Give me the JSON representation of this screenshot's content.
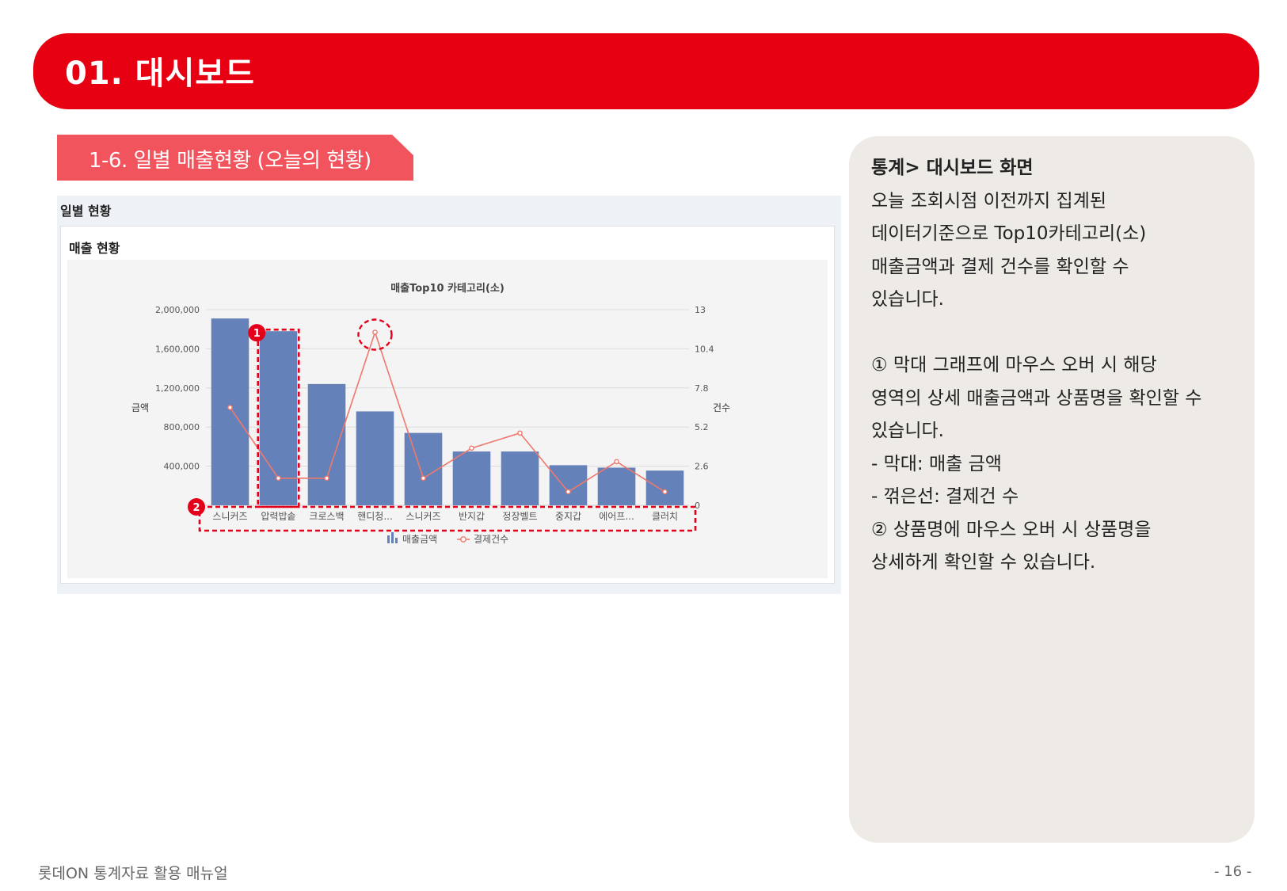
{
  "header": {
    "title": "01. 대시보드"
  },
  "section": {
    "label": "1-6. 일별 매출현황 (오늘의 현황)"
  },
  "panel": {
    "outer_title": "일별 현황",
    "inner_title": "매출 현황"
  },
  "callouts": {
    "bars": "1",
    "names": "2"
  },
  "side": {
    "heading": "통계> 대시보드 화면",
    "intro": [
      "오늘 조회시점 이전까지 집계된",
      "데이터기준으로 Top10카테고리(소)",
      "매출금액과 결제 건수를 확인할 수",
      "있습니다."
    ],
    "point1": [
      "① 막대 그래프에 마우스 오버 시 해당",
      "영역의 상세 매출금액과 상품명을 확인할 수",
      "있습니다."
    ],
    "bullets": [
      "-   막대: 매출 금액",
      "-   꺾은선: 결제건 수"
    ],
    "point2": [
      "② 상품명에 마우스 오버 시 상품명을",
      "상세하게 확인할 수 있습니다."
    ]
  },
  "footer": {
    "left": "롯데ON 통계자료 활용 매뉴얼",
    "right": "- 16 -"
  },
  "chart_data": {
    "type": "bar",
    "title": "매출Top10 카테고리(소)",
    "categories": [
      "스니커즈",
      "압력밥솥",
      "크로스백",
      "핸디청...",
      "스니커즈",
      "반지갑",
      "정장벨트",
      "중지갑",
      "에어프...",
      "클러치"
    ],
    "series": [
      {
        "name": "매출금액",
        "type": "bar",
        "axis": "left",
        "color": "#6482b9",
        "values": [
          1910000,
          1780000,
          1240000,
          960000,
          740000,
          550000,
          550000,
          410000,
          385000,
          355000
        ]
      },
      {
        "name": "결제건수",
        "type": "line",
        "axis": "right",
        "color": "#f0776c",
        "values": [
          6.5,
          1.8,
          1.8,
          11.5,
          1.8,
          3.8,
          4.8,
          0.9,
          2.9,
          0.9
        ]
      }
    ],
    "y_left": {
      "label": "금액",
      "min": 0,
      "max": 2000000,
      "ticks": [
        "2,000,000",
        "1,600,000",
        "1,200,000",
        "800,000",
        "400,000"
      ]
    },
    "y_right": {
      "label": "건수",
      "min": 0,
      "max": 13,
      "ticks": [
        "13",
        "10.4",
        "7.8",
        "5.2",
        "2.6",
        "0"
      ]
    },
    "grid": true,
    "legend": "bottom-center",
    "highlight_point_index": 3
  }
}
